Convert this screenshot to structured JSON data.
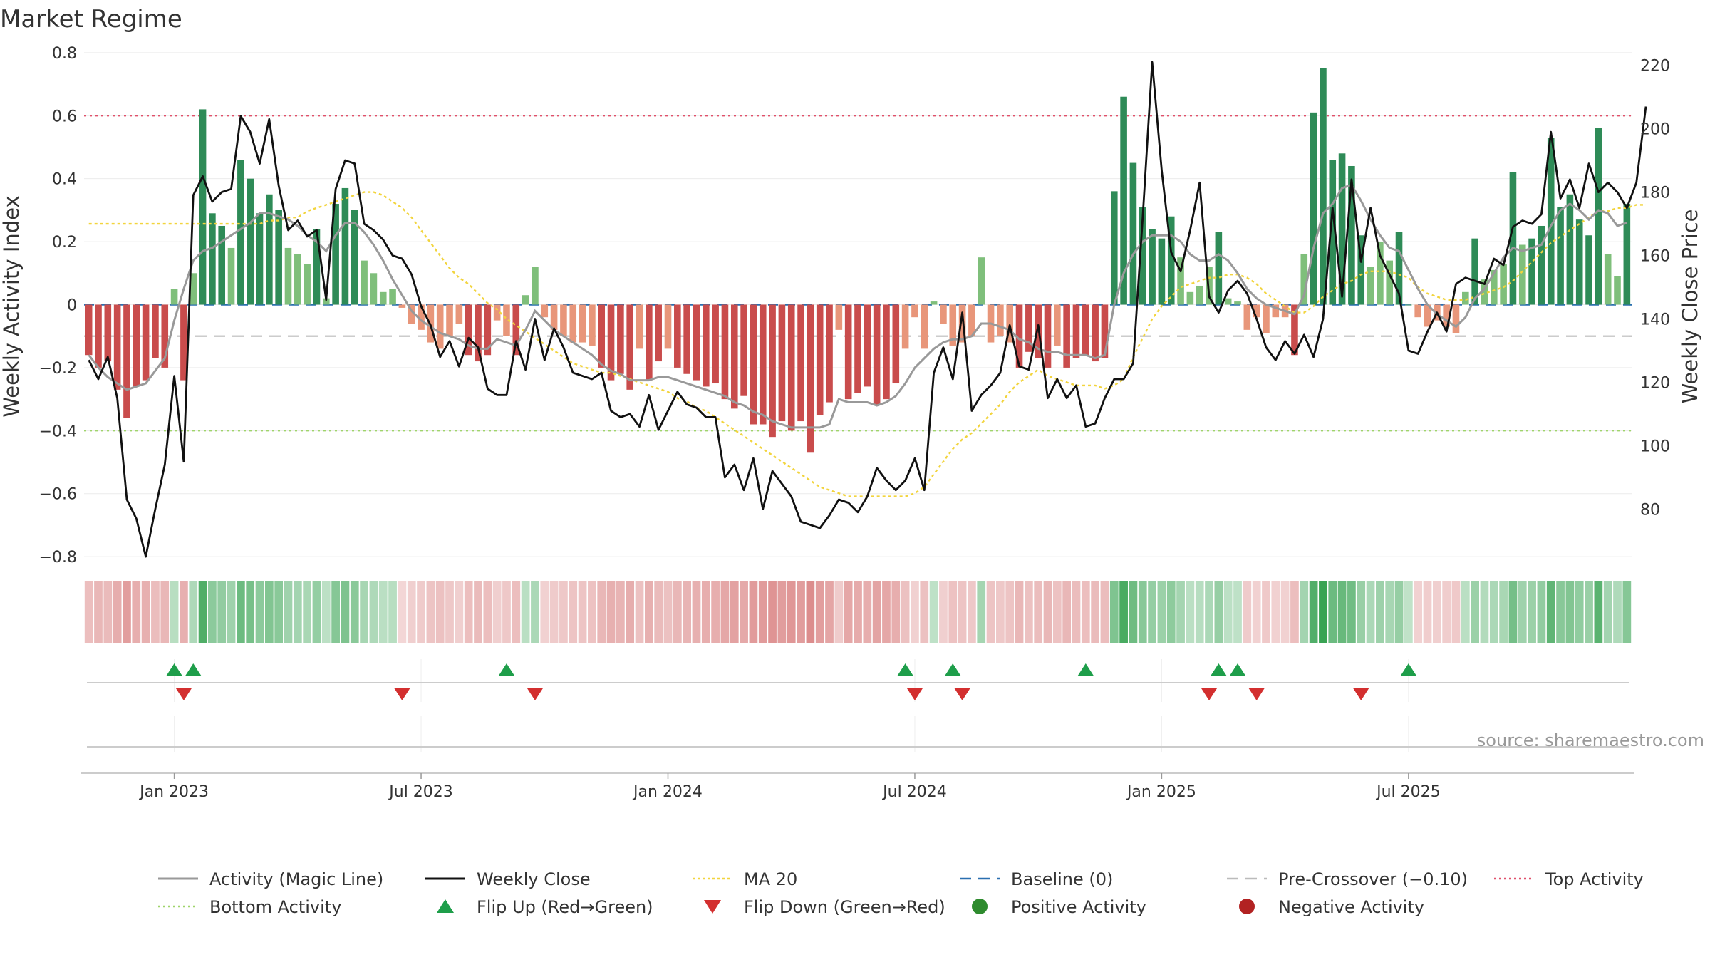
{
  "chart_data": {
    "type": "bar",
    "title": "Market Regime",
    "ylabel": "Weekly Activity Index",
    "y2label": "Weekly Close Price",
    "source": "source: sharemaestro.com",
    "yticks": [
      "0.8",
      "0.6",
      "0.4",
      "0.2",
      "0",
      "−0.2",
      "−0.4",
      "−0.6",
      "−0.8"
    ],
    "y2ticks": [
      "220",
      "200",
      "180",
      "160",
      "140",
      "120",
      "100",
      "80"
    ],
    "xticks": [
      "Jan 2023",
      "Jul 2023",
      "Jan 2024",
      "Jul 2024",
      "Jan 2025",
      "Jul 2025"
    ],
    "ylim": [
      -0.82,
      0.82
    ],
    "y2lim": [
      63,
      226
    ],
    "levels": {
      "top": 0.6,
      "bottom": -0.4,
      "pre_crossover": -0.1,
      "baseline": 0
    },
    "colors": {
      "strong_pos": "#2e8b57",
      "pos": "#7fbf7b",
      "neg": "#c94c4c",
      "weak_neg": "#e8967a",
      "close": "#111111",
      "magic": "#999999",
      "ma20": "#f2d43d",
      "top": "#e0506a",
      "bottom": "#9fd46a",
      "baseline": "#2a6fb0",
      "pre": "#bbbbbb",
      "flip_up": "#1e9e4a",
      "flip_down": "#d32f2f"
    },
    "series": [
      {
        "name": "Weekly Activity Index",
        "type": "bar",
        "values": [
          -0.16,
          -0.2,
          -0.18,
          -0.27,
          -0.36,
          -0.26,
          -0.24,
          -0.17,
          -0.2,
          0.05,
          -0.24,
          0.1,
          0.62,
          0.29,
          0.25,
          0.18,
          0.46,
          0.4,
          0.29,
          0.35,
          0.3,
          0.18,
          0.16,
          0.13,
          0.24,
          0.02,
          0.32,
          0.37,
          0.3,
          0.14,
          0.1,
          0.04,
          0.05,
          -0.01,
          -0.06,
          -0.08,
          -0.12,
          -0.14,
          -0.1,
          -0.06,
          -0.16,
          -0.18,
          -0.16,
          -0.05,
          -0.1,
          -0.16,
          0.03,
          0.12,
          -0.04,
          -0.08,
          -0.1,
          -0.12,
          -0.12,
          -0.13,
          -0.2,
          -0.24,
          -0.22,
          -0.27,
          -0.14,
          -0.24,
          -0.18,
          -0.14,
          -0.2,
          -0.22,
          -0.24,
          -0.26,
          -0.25,
          -0.3,
          -0.33,
          -0.29,
          -0.38,
          -0.38,
          -0.42,
          -0.37,
          -0.4,
          -0.37,
          -0.47,
          -0.35,
          -0.31,
          -0.08,
          -0.3,
          -0.28,
          -0.26,
          -0.32,
          -0.3,
          -0.25,
          -0.14,
          -0.04,
          -0.14,
          0.01,
          -0.06,
          -0.13,
          -0.12,
          -0.1,
          0.15,
          -0.12,
          -0.1,
          -0.12,
          -0.2,
          -0.15,
          -0.17,
          -0.2,
          -0.13,
          -0.2,
          -0.17,
          -0.16,
          -0.18,
          -0.17,
          0.36,
          0.66,
          0.45,
          0.31,
          0.24,
          0.21,
          0.28,
          0.15,
          0.04,
          0.06,
          0.12,
          0.23,
          0.02,
          0.01,
          -0.08,
          -0.04,
          -0.09,
          -0.04,
          -0.04,
          -0.16,
          0.16,
          0.61,
          0.75,
          0.46,
          0.48,
          0.44,
          0.22,
          0.12,
          0.2,
          0.14,
          0.23,
          0.0,
          -0.04,
          -0.07,
          -0.05,
          -0.07,
          -0.09,
          0.04,
          0.21,
          0.08,
          0.11,
          0.13,
          0.42,
          0.19,
          0.21,
          0.25,
          0.53,
          0.31,
          0.35,
          0.27,
          0.22,
          0.56,
          0.16,
          0.09,
          0.32
        ]
      },
      {
        "name": "Weekly Close",
        "type": "line",
        "axis": "y2",
        "values": [
          127,
          121,
          128,
          115,
          83,
          77,
          65,
          80,
          94,
          122,
          95,
          179,
          185,
          177,
          180,
          181,
          204,
          199,
          189,
          203,
          182,
          168,
          171,
          166,
          168,
          146,
          181,
          190,
          189,
          170,
          168,
          165,
          160,
          159,
          154,
          144,
          138,
          128,
          133,
          125,
          134,
          131,
          118,
          116,
          116,
          133,
          124,
          140,
          127,
          137,
          131,
          123,
          122,
          121,
          123,
          111,
          109,
          110,
          106,
          116,
          105,
          111,
          117,
          113,
          112,
          109,
          109,
          90,
          94,
          86,
          96,
          80,
          92,
          88,
          84,
          76,
          75,
          74,
          78,
          83,
          82,
          79,
          84,
          93,
          89,
          86,
          89,
          96,
          86,
          123,
          131,
          121,
          142,
          111,
          116,
          119,
          123,
          138,
          125,
          124,
          138,
          115,
          121,
          115,
          119,
          106,
          107,
          115,
          121,
          121,
          126,
          172,
          221,
          187,
          161,
          155,
          168,
          183,
          147,
          142,
          149,
          152,
          148,
          140,
          131,
          127,
          133,
          129,
          135,
          128,
          140,
          175,
          147,
          184,
          158,
          175,
          160,
          154,
          148,
          130,
          129,
          136,
          142,
          136,
          151,
          153,
          152,
          151,
          159,
          157,
          169,
          171,
          170,
          173,
          199,
          178,
          184,
          175,
          189,
          180,
          183,
          180,
          175,
          183,
          207
        ]
      },
      {
        "name": "Activity (Magic Line)",
        "type": "line",
        "values": [
          -0.16,
          -0.2,
          -0.23,
          -0.25,
          -0.27,
          -0.26,
          -0.25,
          -0.21,
          -0.17,
          -0.05,
          0.05,
          0.14,
          0.17,
          0.18,
          0.2,
          0.22,
          0.24,
          0.26,
          0.29,
          0.29,
          0.28,
          0.27,
          0.25,
          0.22,
          0.2,
          0.17,
          0.22,
          0.26,
          0.26,
          0.23,
          0.19,
          0.14,
          0.08,
          0.03,
          -0.02,
          -0.05,
          -0.07,
          -0.09,
          -0.1,
          -0.11,
          -0.13,
          -0.14,
          -0.14,
          -0.11,
          -0.12,
          -0.13,
          -0.08,
          -0.02,
          -0.05,
          -0.08,
          -0.1,
          -0.12,
          -0.14,
          -0.16,
          -0.19,
          -0.21,
          -0.22,
          -0.24,
          -0.24,
          -0.24,
          -0.23,
          -0.23,
          -0.24,
          -0.25,
          -0.26,
          -0.27,
          -0.28,
          -0.29,
          -0.31,
          -0.32,
          -0.34,
          -0.35,
          -0.37,
          -0.38,
          -0.39,
          -0.39,
          -0.39,
          -0.39,
          -0.38,
          -0.3,
          -0.31,
          -0.31,
          -0.31,
          -0.32,
          -0.31,
          -0.29,
          -0.25,
          -0.2,
          -0.17,
          -0.14,
          -0.12,
          -0.11,
          -0.11,
          -0.1,
          -0.06,
          -0.06,
          -0.07,
          -0.08,
          -0.11,
          -0.12,
          -0.14,
          -0.15,
          -0.15,
          -0.16,
          -0.16,
          -0.16,
          -0.17,
          -0.16,
          0.0,
          0.1,
          0.16,
          0.2,
          0.22,
          0.22,
          0.22,
          0.2,
          0.16,
          0.14,
          0.14,
          0.16,
          0.14,
          0.1,
          0.05,
          0.02,
          0.0,
          -0.01,
          -0.02,
          -0.03,
          0.03,
          0.18,
          0.29,
          0.32,
          0.37,
          0.38,
          0.33,
          0.27,
          0.22,
          0.18,
          0.17,
          0.11,
          0.05,
          0.0,
          -0.03,
          -0.05,
          -0.07,
          -0.04,
          0.02,
          0.05,
          0.1,
          0.15,
          0.18,
          0.17,
          0.18,
          0.19,
          0.25,
          0.3,
          0.32,
          0.3,
          0.27,
          0.3,
          0.29,
          0.25,
          0.26
        ]
      },
      {
        "name": "MA 20",
        "type": "line",
        "axis": "y2",
        "values": [
          170,
          170,
          170,
          170,
          170,
          170,
          170,
          170,
          170,
          170,
          170,
          170,
          170,
          170,
          170,
          170,
          170,
          170,
          170,
          171,
          171,
          172,
          172,
          174,
          175,
          176,
          177,
          178,
          179,
          180,
          180,
          179,
          177,
          175,
          172,
          168,
          164,
          160,
          156,
          153,
          151,
          148,
          145,
          143,
          140,
          138,
          136,
          134,
          132,
          130,
          128,
          126,
          125,
          124,
          123,
          123,
          122,
          121,
          120,
          119,
          118,
          117,
          115,
          114,
          112,
          111,
          109,
          107,
          105,
          103,
          101,
          99,
          97,
          95,
          93,
          91,
          89,
          87,
          86,
          85,
          84,
          84,
          84,
          84,
          84,
          84,
          84,
          85,
          87,
          91,
          95,
          99,
          102,
          104,
          107,
          110,
          113,
          117,
          120,
          122,
          124,
          122,
          121,
          120,
          119,
          119,
          119,
          118,
          119,
          121,
          128,
          134,
          140,
          144,
          147,
          150,
          151,
          152,
          153,
          153,
          154,
          154,
          153,
          151,
          148,
          146,
          144,
          142,
          142,
          144,
          147,
          149,
          151,
          152,
          154,
          155,
          155,
          155,
          154,
          153,
          150,
          148,
          147,
          146,
          146,
          146,
          147,
          148,
          149,
          150,
          152,
          155,
          158,
          161,
          164,
          166,
          168,
          170,
          172,
          174,
          174,
          175,
          175,
          176,
          176
        ]
      },
      {
        "name": "Baseline (0)",
        "type": "hline",
        "value": 0
      },
      {
        "name": "Pre-Crossover (−0.10)",
        "type": "hline",
        "value": -0.1
      },
      {
        "name": "Top Activity",
        "type": "hline",
        "value": 0.6
      },
      {
        "name": "Bottom Activity",
        "type": "hline",
        "value": -0.4
      },
      {
        "name": "Flip Up (Red→Green)",
        "type": "marker",
        "indices": [
          9,
          11,
          44,
          86,
          91,
          105,
          119,
          121,
          139
        ]
      },
      {
        "name": "Flip Down (Green→Red)",
        "type": "marker",
        "indices": [
          10,
          33,
          47,
          87,
          92,
          118,
          123,
          134
        ]
      },
      {
        "name": "Positive Activity",
        "type": "marker",
        "indices": []
      },
      {
        "name": "Negative Activity",
        "type": "marker",
        "indices": []
      }
    ],
    "legend": {
      "placement": "bottom",
      "entries": [
        {
          "key": "magic",
          "label": "Activity (Magic Line)",
          "shape": "line",
          "color": "#999999"
        },
        {
          "key": "close",
          "label": "Weekly Close",
          "shape": "line",
          "color": "#111111"
        },
        {
          "key": "ma20",
          "label": "MA 20",
          "shape": "dotted",
          "color": "#f2d43d"
        },
        {
          "key": "baseline",
          "label": "Baseline (0)",
          "shape": "dashed",
          "color": "#2a6fb0"
        },
        {
          "key": "pre",
          "label": "Pre-Crossover (−0.10)",
          "shape": "dashed",
          "color": "#bbbbbb"
        },
        {
          "key": "top",
          "label": "Top Activity",
          "shape": "dotted",
          "color": "#e0506a"
        },
        {
          "key": "bottom",
          "label": "Bottom Activity",
          "shape": "dotted",
          "color": "#9fd46a"
        },
        {
          "key": "flip_up",
          "label": "Flip Up (Red→Green)",
          "shape": "triangle-up",
          "color": "#1e9e4a"
        },
        {
          "key": "flip_down",
          "label": "Flip Down (Green→Red)",
          "shape": "triangle-down",
          "color": "#d32f2f"
        },
        {
          "key": "pos",
          "label": "Positive Activity",
          "shape": "circle",
          "color": "#2e8b2e"
        },
        {
          "key": "neg",
          "label": "Negative Activity",
          "shape": "circle",
          "color": "#b22222"
        }
      ]
    }
  }
}
